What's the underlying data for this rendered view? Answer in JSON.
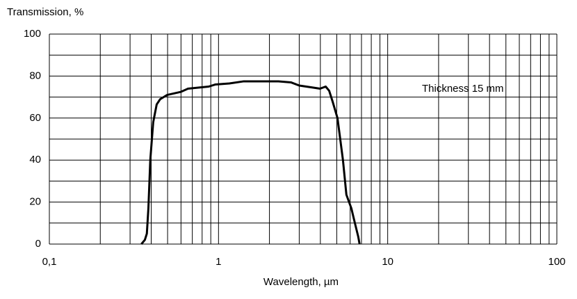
{
  "chart_data": {
    "type": "line",
    "title": "Transmission, %",
    "x_label": "Wavelength, µm",
    "annotation": "Thickness 15 mm",
    "x": [
      0.35,
      0.367,
      0.377,
      0.385,
      0.395,
      0.411,
      0.431,
      0.452,
      0.497,
      0.6,
      0.66,
      0.875,
      0.96,
      1.16,
      1.41,
      2.26,
      2.68,
      3.0,
      3.63,
      3.98,
      4.3,
      4.51,
      4.72,
      5.05,
      5.44,
      5.7,
      6.1,
      6.4,
      6.7,
      6.82
    ],
    "values": [
      0,
      2,
      5,
      17,
      40,
      58,
      66.5,
      69,
      71,
      72.5,
      74,
      75,
      76,
      76.5,
      77.5,
      77.5,
      77,
      75.5,
      74.5,
      74,
      75,
      73,
      68,
      60,
      40,
      23.5,
      17,
      10,
      3.5,
      0
    ],
    "color": "#000000",
    "xlog": true,
    "xlim": [
      0.1,
      100
    ],
    "ylim": [
      0,
      100
    ],
    "xticks": [
      {
        "value": 0.1,
        "label": "0,1"
      },
      1,
      10,
      100
    ],
    "yticks": [
      0,
      20,
      40,
      60,
      80,
      100
    ],
    "xgrid": [
      0.1,
      0.2,
      0.3,
      0.4,
      0.5,
      0.6,
      0.7,
      0.8,
      0.9,
      1,
      2,
      3,
      4,
      5,
      6,
      7,
      8,
      9,
      10,
      20,
      30,
      40,
      50,
      60,
      70,
      80,
      90,
      100
    ],
    "ygrid": [
      0,
      10,
      20,
      30,
      40,
      50,
      60,
      70,
      80,
      90,
      100
    ]
  }
}
